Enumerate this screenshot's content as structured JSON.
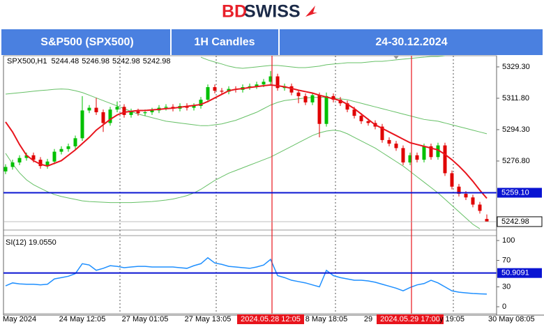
{
  "logo": {
    "part1": "BD",
    "part2": "SWISS"
  },
  "header": {
    "instrument": "S&P500 (SPX500)",
    "timeframe": "1H Candles",
    "period": "24-30.12.2024"
  },
  "chart_data": [
    {
      "type": "candlestick",
      "symbol": "SPX500,H1",
      "last_bar": [
        5244.48,
        5246.98,
        5242.98,
        5242.98
      ],
      "categories": [
        null,
        null,
        "May 2024",
        null,
        null,
        null,
        null,
        null,
        null,
        null,
        null,
        "24 May 12:05",
        null,
        null,
        null,
        null,
        null,
        null,
        null,
        null,
        "27 May 01:05",
        null,
        null,
        null,
        null,
        null,
        null,
        null,
        null,
        "27 May 13:05",
        null,
        null,
        null,
        null,
        null,
        null,
        null,
        null,
        "2024.05.28 12:05",
        null,
        null,
        null,
        null,
        null,
        null,
        null,
        "8 May 18:05",
        null,
        null,
        null,
        null,
        null,
        "29",
        null,
        null,
        null,
        null,
        null,
        "2024.05.29 17:00",
        null,
        null,
        null,
        null,
        null,
        "y 19:05",
        null,
        null,
        null,
        null,
        "30 May 08:05"
      ],
      "open": [
        5271.0,
        5273.5,
        5276.0,
        5278.5,
        5280.0,
        5277.5,
        5274.0,
        5276.5,
        5282.0,
        5283.5,
        5285.0,
        5289.5,
        5305.0,
        5306.5,
        5304.0,
        5298.0,
        5305.5,
        5307.0,
        5302.5,
        5304.5,
        5303.5,
        5304.0,
        5305.0,
        5306.5,
        5307.0,
        5306.0,
        5307.5,
        5306.5,
        5307.5,
        5311.0,
        5318.0,
        5316.0,
        5315.5,
        5317.0,
        5316.5,
        5318.0,
        5318.5,
        5319.5,
        5321.0,
        5324.0,
        5317.5,
        5318.5,
        5315.0,
        5313.0,
        5309.5,
        5313.5,
        5297.5,
        5313.0,
        5311.0,
        5309.0,
        5305.5,
        5302.0,
        5299.0,
        5298.0,
        5296.0,
        5288.5,
        5286.5,
        5284.0,
        5276.0,
        5280.0,
        5277.5,
        5285.0,
        5279.0,
        5285.5,
        5270.0,
        5262.5,
        5258.5,
        5256.5,
        5252.5,
        5244.48
      ],
      "high": [
        5275.0,
        5277.5,
        5280.0,
        5281.5,
        5281.5,
        5279.0,
        5278.0,
        5283.5,
        5285.0,
        5286.5,
        5291.0,
        5313.0,
        5308.0,
        5312.0,
        5305.5,
        5307.0,
        5310.0,
        5308.5,
        5306.0,
        5306.0,
        5305.5,
        5306.5,
        5308.0,
        5308.5,
        5308.5,
        5309.0,
        5309.0,
        5309.0,
        5312.5,
        5319.5,
        5319.5,
        5317.5,
        5318.5,
        5318.5,
        5319.5,
        5320.0,
        5321.0,
        5322.5,
        5327.0,
        5325.5,
        5320.0,
        5320.0,
        5316.5,
        5314.5,
        5315.0,
        5315.0,
        5315.0,
        5314.5,
        5312.5,
        5310.5,
        5307.0,
        5303.5,
        5300.5,
        5299.5,
        5297.5,
        5290.0,
        5288.0,
        5285.5,
        5281.5,
        5281.5,
        5286.5,
        5286.5,
        5287.0,
        5287.0,
        5271.5,
        5264.0,
        5260.0,
        5258.0,
        5254.0,
        5246.98
      ],
      "low": [
        5269.5,
        5272.0,
        5274.5,
        5277.0,
        5276.0,
        5272.5,
        5272.5,
        5275.0,
        5280.5,
        5282.0,
        5283.5,
        5288.0,
        5303.5,
        5302.5,
        5293.0,
        5296.5,
        5304.0,
        5301.0,
        5301.0,
        5302.0,
        5302.0,
        5302.5,
        5303.5,
        5305.0,
        5304.5,
        5304.5,
        5305.0,
        5305.0,
        5306.0,
        5309.5,
        5314.5,
        5314.0,
        5314.0,
        5315.0,
        5315.0,
        5316.5,
        5317.0,
        5318.0,
        5319.5,
        5316.0,
        5316.0,
        5313.5,
        5309.0,
        5308.0,
        5308.0,
        5290.0,
        5296.0,
        5309.5,
        5307.5,
        5304.0,
        5300.5,
        5297.5,
        5296.5,
        5294.5,
        5287.0,
        5285.0,
        5282.5,
        5274.5,
        5274.5,
        5276.0,
        5276.0,
        5277.5,
        5277.5,
        5268.5,
        5261.0,
        5257.0,
        5255.0,
        5251.0,
        5247.5,
        5242.98
      ],
      "close": [
        5273.5,
        5276.0,
        5278.5,
        5280.0,
        5277.5,
        5274.0,
        5276.5,
        5282.0,
        5283.5,
        5285.0,
        5289.5,
        5305.0,
        5306.5,
        5304.0,
        5298.0,
        5305.5,
        5307.0,
        5302.5,
        5304.5,
        5303.5,
        5304.0,
        5305.0,
        5306.5,
        5307.0,
        5306.0,
        5307.5,
        5306.5,
        5307.5,
        5311.0,
        5318.0,
        5316.0,
        5315.5,
        5317.0,
        5316.5,
        5318.0,
        5318.5,
        5319.5,
        5321.0,
        5324.0,
        5317.5,
        5318.5,
        5315.0,
        5313.0,
        5309.5,
        5313.5,
        5297.5,
        5313.0,
        5311.0,
        5309.0,
        5305.5,
        5302.0,
        5299.0,
        5298.0,
        5296.0,
        5288.5,
        5286.5,
        5284.0,
        5276.0,
        5280.0,
        5277.5,
        5285.0,
        5279.0,
        5285.5,
        5270.0,
        5262.5,
        5258.5,
        5256.5,
        5252.5,
        5249.0,
        5242.98
      ],
      "up_color": "#00c000",
      "down_color": "#e00000",
      "ylim": [
        5238.3,
        5335.5
      ],
      "yticks": [
        {
          "value": 5329.3,
          "label": "5329.30"
        },
        {
          "value": 5311.8,
          "label": "5311.80"
        },
        {
          "value": 5294.3,
          "label": "5294.30"
        },
        {
          "value": 5276.8,
          "label": "5276.80"
        }
      ],
      "overlays": [
        {
          "color": "#e8141c",
          "width": 2,
          "values": [
            5298.6,
            5293.0,
            5286.0,
            5280.0,
            5277.0,
            5275.0,
            5274.0,
            5275.5,
            5277.0,
            5280.0,
            5283.0,
            5286.5,
            5290.0,
            5294.0,
            5297.0,
            5300.0,
            5302.5,
            5304.0,
            5304.5,
            5305.0,
            5305.0,
            5305.3,
            5305.6,
            5306.0,
            5306.3,
            5306.8,
            5307.3,
            5307.8,
            5308.3,
            5310.0,
            5312.0,
            5314.0,
            5316.0,
            5316.8,
            5317.2,
            5317.8,
            5318.3,
            5318.8,
            5319.2,
            5318.8,
            5318.2,
            5317.3,
            5316.3,
            5315.5,
            5314.7,
            5313.5,
            5312.5,
            5311.5,
            5310.5,
            5308.5,
            5306.0,
            5303.0,
            5300.0,
            5297.0,
            5295.0,
            5293.0,
            5291.0,
            5289.0,
            5287.0,
            5286.0,
            5285.0,
            5284.0,
            5283.0,
            5280.5,
            5277.5,
            5274.0,
            5270.0,
            5265.5,
            5260.5,
            5256.0
          ]
        },
        {
          "color": "#66c066",
          "width": 1,
          "values": [
            null,
            null,
            null,
            null,
            null,
            null,
            null,
            null,
            null,
            null,
            null,
            null,
            null,
            null,
            null,
            null,
            null,
            null,
            null,
            null,
            null,
            null,
            null,
            null,
            null,
            null,
            null,
            null,
            5334.7,
            5333.2,
            5332.0,
            5330.9,
            5329.7,
            5328.9,
            5328.5,
            5328.9,
            5329.3,
            5329.7,
            5330.1,
            5330.1,
            5329.7,
            5329.3,
            5328.9,
            5328.9,
            5329.3,
            5329.7,
            5330.5,
            5330.9,
            5331.2,
            5331.6,
            5331.6,
            5331.6,
            5332.0,
            5332.4,
            5332.4,
            5332.8,
            5333.2,
            5333.6,
            5334.0,
            5334.4,
            5334.7,
            5335.1,
            5335.1,
            5335.5,
            null,
            null,
            null,
            null,
            null,
            null
          ]
        },
        {
          "color": "#66c066",
          "width": 1,
          "values": [
            5314.1,
            5314.5,
            5314.9,
            5315.3,
            5315.7,
            5316.1,
            5316.4,
            5316.8,
            5317.0,
            5316.8,
            5316.0,
            5315.0,
            5313.5,
            5312.0,
            5310.5,
            5309.0,
            5307.5,
            5306.0,
            5304.5,
            5303.0,
            5302.0,
            5301.0,
            5300.0,
            5299.0,
            5298.5,
            5298.0,
            5297.5,
            5297.0,
            5296.5,
            5296.5,
            5297.0,
            5297.5,
            5298.5,
            5299.5,
            5301.0,
            5302.5,
            5304.0,
            5306.0,
            5308.0,
            5309.5,
            5310.5,
            5311.0,
            5311.5,
            5312.0,
            5312.2,
            5312.3,
            5312.3,
            5312.0,
            5311.5,
            5311.0,
            5310.0,
            5309.0,
            5308.0,
            5307.0,
            5306.0,
            5305.0,
            5304.0,
            5303.0,
            5302.0,
            5301.0,
            5300.0,
            5299.5,
            5299.0,
            5298.0,
            5297.0,
            5296.0,
            5295.0,
            5294.0,
            5293.0,
            5292.0
          ]
        },
        {
          "color": "#66c066",
          "width": 1,
          "values": [
            5281.1,
            5275.2,
            5270.2,
            5266.3,
            5263.6,
            5261.6,
            5259.7,
            5258.1,
            5257.0,
            5256.2,
            5255.4,
            5254.6,
            5254.2,
            5254.0,
            5253.8,
            5253.6,
            5253.6,
            5253.6,
            5253.6,
            5253.8,
            5254.0,
            5254.2,
            5254.6,
            5255.0,
            5255.6,
            5256.5,
            5257.5,
            5259.0,
            5261.0,
            5263.5,
            5266.0,
            5268.0,
            5270.0,
            5271.5,
            5273.0,
            5274.5,
            5276.0,
            5277.5,
            5279.0,
            5281.0,
            5283.0,
            5285.0,
            5287.0,
            5289.0,
            5291.0,
            5292.5,
            5293.5,
            5294.0,
            5293.5,
            5292.0,
            5290.0,
            5288.0,
            5286.0,
            5284.0,
            5281.5,
            5279.0,
            5276.5,
            5274.0,
            5271.0,
            5268.0,
            5265.0,
            5262.0,
            5259.0,
            5255.5,
            5252.0,
            5248.5,
            5245.0,
            5241.5,
            5239.0,
            null
          ]
        }
      ],
      "levels": [
        {
          "value": 5259.1,
          "label": "5259.10",
          "color": "#0a14d2"
        }
      ],
      "last_price": {
        "value": 5242.98,
        "label": "5242.98"
      }
    },
    {
      "type": "line",
      "label": "SI(12) 19.0550",
      "color": "#1e8fff",
      "values": [
        31.5,
        36,
        34.5,
        34,
        34,
        33,
        34,
        42,
        44,
        46,
        50,
        65,
        63,
        55,
        58,
        62,
        61,
        59,
        60,
        61,
        61,
        60,
        60,
        60,
        60,
        59,
        58,
        62,
        65,
        74,
        66,
        64,
        61,
        60,
        59,
        58,
        60,
        63,
        71.5,
        47,
        44,
        40,
        38,
        36,
        33,
        30,
        55,
        47,
        44,
        42,
        40,
        40,
        39,
        37,
        34,
        31,
        28,
        24,
        29,
        33,
        35,
        40,
        36,
        30,
        24,
        22,
        21,
        20,
        19.5,
        19.055
      ],
      "ylim": [
        -10.5,
        107.4
      ],
      "yticks": [
        100,
        70,
        30,
        0
      ],
      "levels": [
        {
          "value": 50.9091,
          "label": "50.9091",
          "color": "#0a14d2"
        }
      ]
    }
  ]
}
